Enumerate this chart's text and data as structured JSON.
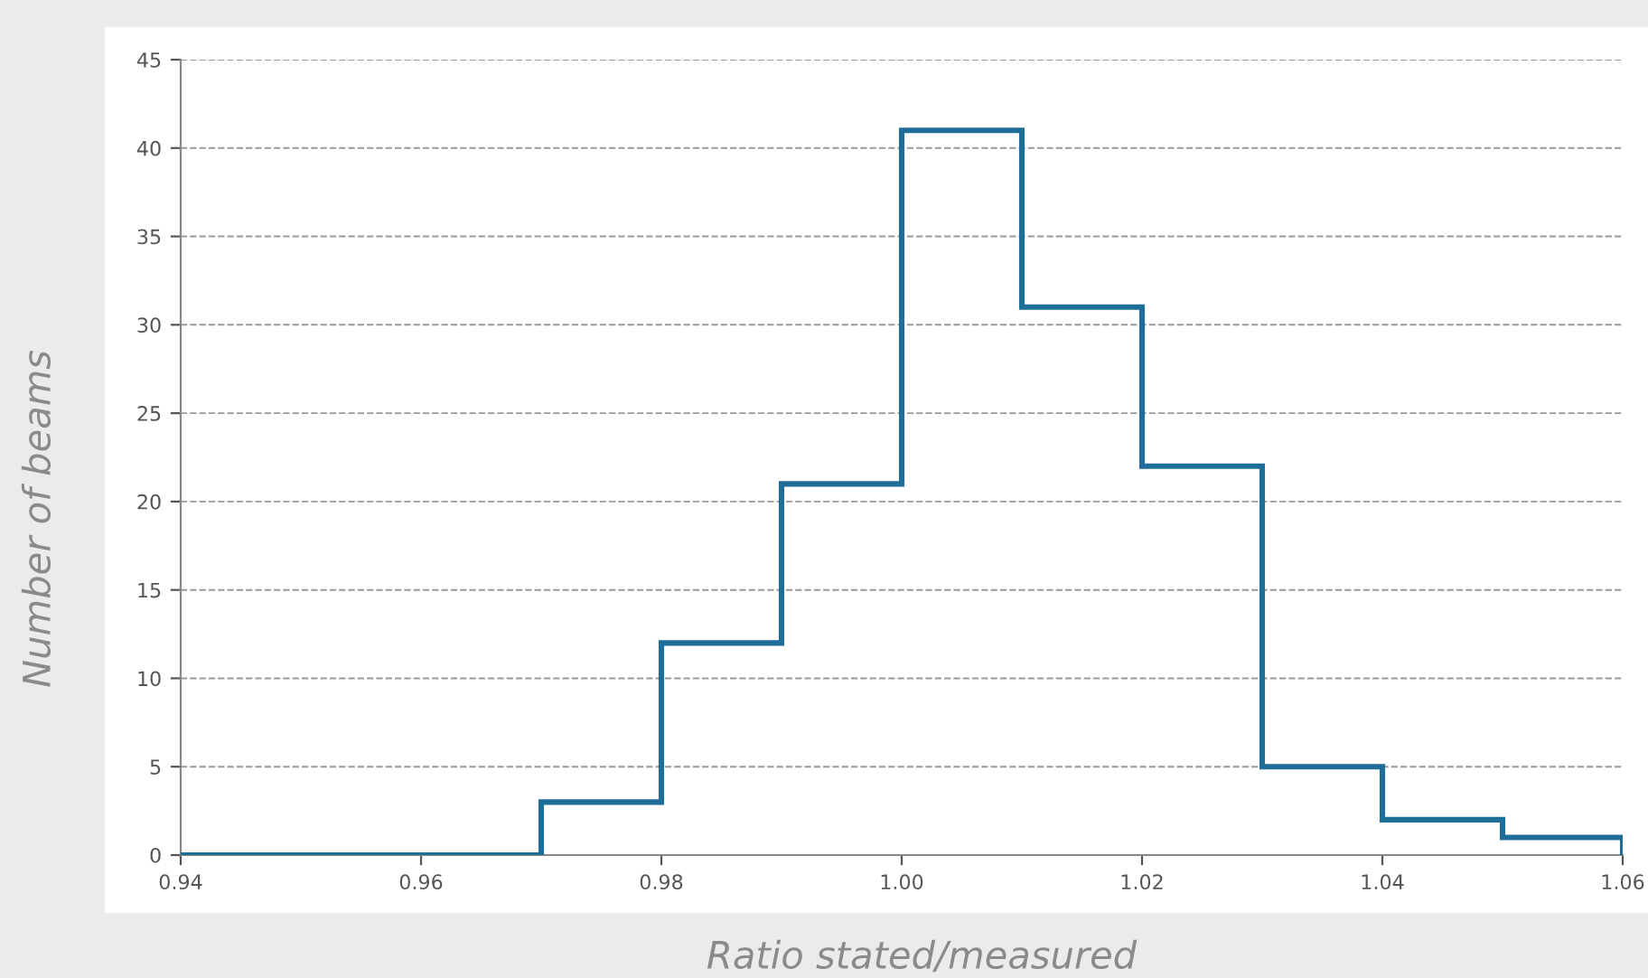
{
  "chart_data": {
    "type": "histogram",
    "xlabel": "Ratio stated/measured",
    "ylabel": "Number of beams",
    "bins": [
      0.94,
      0.95,
      0.96,
      0.97,
      0.98,
      0.99,
      1.0,
      1.01,
      1.02,
      1.03,
      1.04,
      1.05,
      1.06
    ],
    "values": [
      0,
      0,
      0,
      3,
      12,
      21,
      41,
      31,
      22,
      5,
      2,
      1
    ],
    "color": "#1f6e99",
    "xlim": [
      0.94,
      1.06
    ],
    "xticks": [
      0.94,
      0.96,
      0.98,
      {
        "value": 1.0,
        "label": "1.00"
      },
      1.02,
      1.04,
      1.06
    ],
    "ylim": [
      0,
      45
    ],
    "yticks": [
      0,
      5,
      10,
      15,
      20,
      25,
      30,
      35,
      40,
      45
    ],
    "grid": "y",
    "legend": false
  }
}
